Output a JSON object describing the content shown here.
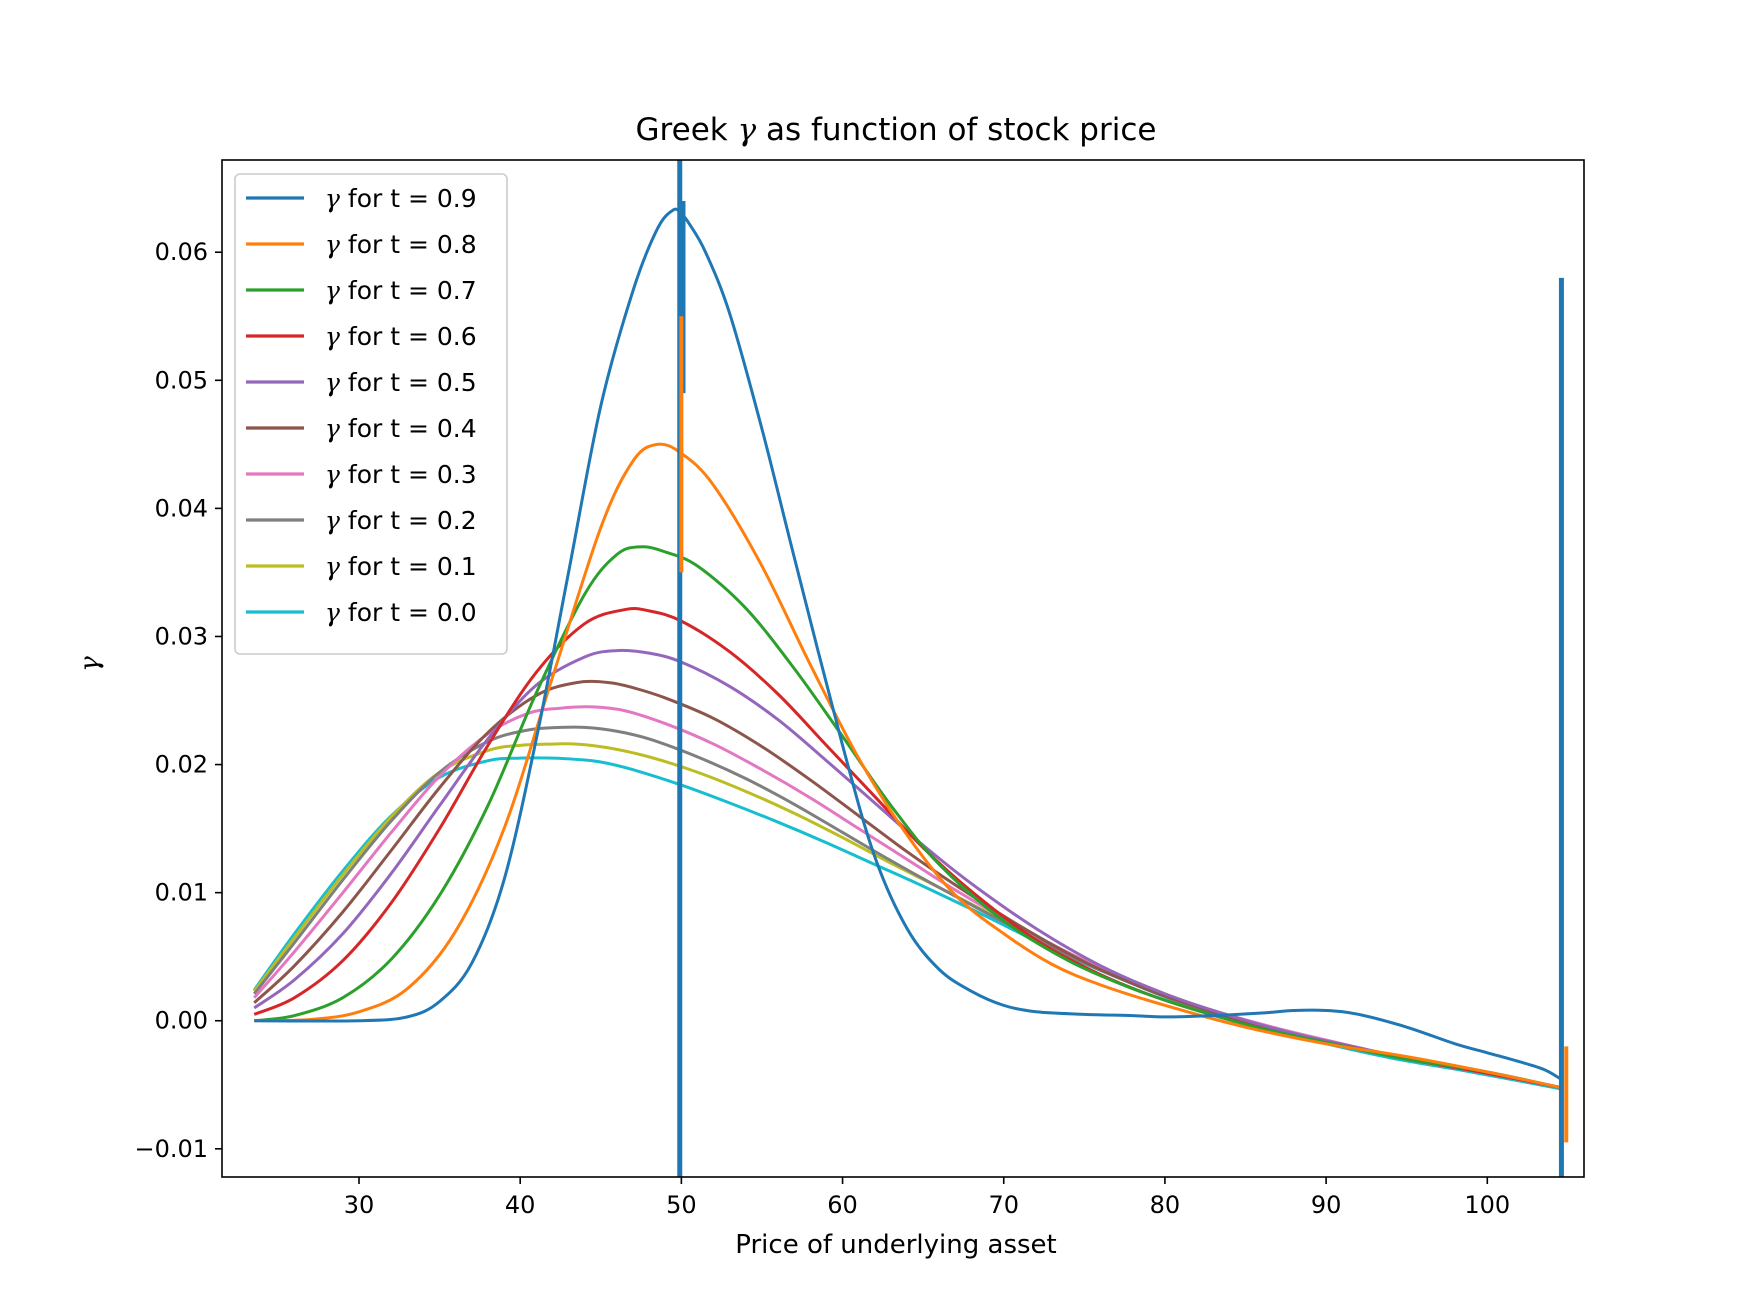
{
  "chart_data": {
    "type": "line",
    "title_prefix": "Greek ",
    "title_symbol": "γ",
    "title_suffix": " as function of stock price",
    "xlabel": "Price of underlying asset",
    "ylabel": "γ",
    "xlim": [
      21.5,
      106.0
    ],
    "ylim": [
      -0.0122,
      0.0672
    ],
    "grid": false,
    "legend_position": "upper-left",
    "x_ticks": [
      30,
      40,
      50,
      60,
      70,
      80,
      90,
      100
    ],
    "x_tick_labels": [
      "30",
      "40",
      "50",
      "60",
      "70",
      "80",
      "90",
      "100"
    ],
    "y_ticks": [
      -0.01,
      0.0,
      0.01,
      0.02,
      0.03,
      0.04,
      0.05,
      0.06
    ],
    "y_tick_labels": [
      "−0.01",
      "0.00",
      "0.01",
      "0.02",
      "0.03",
      "0.04",
      "0.05",
      "0.06"
    ],
    "x_range": [
      23.5,
      105.0
    ],
    "series": [
      {
        "name": "γ for t = 0.9",
        "symbol": "γ",
        "label": " for t = 0.9",
        "color": "#1f77b4",
        "x": [
          23.5,
          30,
          33,
          35,
          37,
          39,
          41,
          43,
          45,
          47,
          48.5,
          49.5,
          50,
          50.5,
          51.5,
          53,
          55,
          57,
          60,
          62,
          64,
          66,
          68,
          70,
          72,
          75,
          78,
          80,
          83,
          86,
          88,
          90,
          92,
          95,
          98,
          100,
          102,
          103.5,
          104.5
        ],
        "y": [
          0.0,
          0.0,
          0.0003,
          0.0015,
          0.0045,
          0.011,
          0.022,
          0.035,
          0.048,
          0.057,
          0.0618,
          0.0633,
          0.063,
          0.0622,
          0.06,
          0.0552,
          0.0462,
          0.0362,
          0.0215,
          0.0128,
          0.0072,
          0.004,
          0.0023,
          0.0012,
          0.0007,
          0.0005,
          0.0004,
          0.0003,
          0.0004,
          0.0006,
          0.0008,
          0.0008,
          0.0005,
          -0.0005,
          -0.0018,
          -0.0025,
          -0.0032,
          -0.0038,
          -0.0045
        ]
      },
      {
        "name": "γ for t = 0.8",
        "symbol": "γ",
        "label": " for t = 0.8",
        "color": "#ff7f0e",
        "x": [
          23.5,
          27,
          30,
          33,
          36,
          39,
          42,
          45,
          47,
          48.5,
          50,
          52,
          55,
          58,
          61,
          64,
          67,
          70,
          73,
          76,
          80,
          85,
          90,
          95,
          100,
          104.5
        ],
        "y": [
          0.0,
          0.0001,
          0.0007,
          0.0025,
          0.007,
          0.015,
          0.0268,
          0.0385,
          0.0437,
          0.045,
          0.0443,
          0.0418,
          0.0355,
          0.0278,
          0.0205,
          0.0145,
          0.0098,
          0.0068,
          0.0044,
          0.0028,
          0.0012,
          -0.0005,
          -0.0018,
          -0.0028,
          -0.004,
          -0.0052
        ]
      },
      {
        "name": "γ for t = 0.7",
        "symbol": "γ",
        "label": " for t = 0.7",
        "color": "#2ca02c",
        "x": [
          23.5,
          26,
          29,
          32,
          35,
          38,
          41,
          44,
          46,
          47.5,
          49,
          51,
          54,
          57,
          60,
          63,
          66,
          70,
          74,
          78,
          82,
          86,
          90,
          95,
          100,
          104.5
        ],
        "y": [
          0.0,
          0.0004,
          0.0018,
          0.0048,
          0.0098,
          0.0168,
          0.0256,
          0.0333,
          0.0364,
          0.037,
          0.0366,
          0.0355,
          0.0322,
          0.0275,
          0.0222,
          0.0168,
          0.0122,
          0.0078,
          0.0047,
          0.0025,
          0.0008,
          -0.0006,
          -0.0017,
          -0.003,
          -0.004,
          -0.0052
        ]
      },
      {
        "name": "γ for t = 0.6",
        "symbol": "γ",
        "label": " for t = 0.6",
        "color": "#d62728",
        "x": [
          23.5,
          26,
          29,
          32,
          35,
          38,
          41,
          44,
          46.5,
          48,
          50,
          53,
          56,
          59,
          62,
          65,
          68,
          72,
          76,
          80,
          84,
          88,
          92,
          96,
          100,
          104.5
        ],
        "y": [
          0.0005,
          0.0018,
          0.0047,
          0.0092,
          0.015,
          0.0215,
          0.0272,
          0.031,
          0.0321,
          0.032,
          0.0312,
          0.0288,
          0.0255,
          0.0215,
          0.0175,
          0.0135,
          0.0101,
          0.0063,
          0.0036,
          0.0016,
          0.0001,
          -0.0012,
          -0.0022,
          -0.0032,
          -0.0041,
          -0.0052
        ]
      },
      {
        "name": "γ for t = 0.5",
        "symbol": "γ",
        "label": " for t = 0.5",
        "color": "#9467bd",
        "x": [
          23.5,
          26,
          29,
          32,
          35,
          38,
          41,
          44,
          46,
          48,
          50,
          53,
          56,
          59,
          62,
          65,
          68,
          72,
          76,
          80,
          84,
          88,
          92,
          96,
          100,
          104.5
        ],
        "y": [
          0.001,
          0.0032,
          0.0068,
          0.0115,
          0.0168,
          0.022,
          0.0262,
          0.0284,
          0.0289,
          0.0287,
          0.028,
          0.0261,
          0.0235,
          0.0203,
          0.017,
          0.0137,
          0.0107,
          0.0072,
          0.0043,
          0.0021,
          0.0004,
          -0.001,
          -0.0021,
          -0.0032,
          -0.0041,
          -0.0052
        ]
      },
      {
        "name": "γ for t = 0.4",
        "symbol": "γ",
        "label": " for t = 0.4",
        "color": "#8c564b",
        "x": [
          23.5,
          26,
          29,
          32,
          35,
          38,
          41,
          43.5,
          45.5,
          47,
          49,
          52,
          55,
          58,
          61,
          64,
          67,
          71,
          75,
          79,
          83,
          87,
          91,
          95,
          100,
          104.5
        ],
        "y": [
          0.0014,
          0.0043,
          0.0085,
          0.0133,
          0.0182,
          0.0225,
          0.0254,
          0.0264,
          0.0264,
          0.026,
          0.0252,
          0.0236,
          0.0214,
          0.0188,
          0.016,
          0.0132,
          0.0106,
          0.0074,
          0.0046,
          0.0024,
          0.0007,
          -0.0007,
          -0.0019,
          -0.003,
          -0.0041,
          -0.0052
        ]
      },
      {
        "name": "γ for t = 0.3",
        "symbol": "γ",
        "label": " for t = 0.3",
        "color": "#e377c2",
        "x": [
          23.5,
          26,
          29,
          32,
          35,
          38,
          40.5,
          42.5,
          44.5,
          46.5,
          49,
          52,
          55,
          58,
          61,
          64,
          67,
          71,
          75,
          79,
          83,
          87,
          91,
          95,
          100,
          104.5
        ],
        "y": [
          0.0018,
          0.0054,
          0.01,
          0.0147,
          0.0191,
          0.0224,
          0.024,
          0.0244,
          0.0245,
          0.0242,
          0.0232,
          0.0216,
          0.0196,
          0.0174,
          0.015,
          0.0126,
          0.0102,
          0.0073,
          0.0047,
          0.0025,
          0.0008,
          -0.0006,
          -0.0018,
          -0.003,
          -0.0041,
          -0.0052
        ]
      },
      {
        "name": "γ for t = 0.2",
        "symbol": "γ",
        "label": " for t = 0.2",
        "color": "#7f7f7f",
        "x": [
          23.5,
          26,
          29,
          32,
          35,
          38,
          40.5,
          42.5,
          44,
          46,
          48,
          51,
          54,
          57,
          60,
          63,
          66,
          70,
          74,
          78,
          82,
          86,
          90,
          95,
          100,
          104.5
        ],
        "y": [
          0.0021,
          0.0061,
          0.011,
          0.0156,
          0.0194,
          0.0218,
          0.0227,
          0.0229,
          0.0229,
          0.0226,
          0.022,
          0.0206,
          0.0189,
          0.0169,
          0.0147,
          0.0125,
          0.0104,
          0.0077,
          0.0051,
          0.0029,
          0.001,
          -0.0004,
          -0.0017,
          -0.003,
          -0.0041,
          -0.0052
        ]
      },
      {
        "name": "γ for t = 0.1",
        "symbol": "γ",
        "label": " for t = 0.1",
        "color": "#bcbd22",
        "x": [
          23.5,
          26,
          29,
          32,
          35,
          38,
          40,
          42,
          43.5,
          45.5,
          48,
          51,
          54,
          57,
          60,
          63,
          66,
          70,
          74,
          78,
          82,
          86,
          90,
          95,
          100,
          104.5
        ],
        "y": [
          0.0023,
          0.0065,
          0.0114,
          0.0159,
          0.0194,
          0.0211,
          0.0215,
          0.0216,
          0.0216,
          0.0213,
          0.0206,
          0.0194,
          0.0179,
          0.0162,
          0.0143,
          0.0123,
          0.0104,
          0.0078,
          0.0053,
          0.0031,
          0.0012,
          -0.0003,
          -0.0016,
          -0.003,
          -0.0041,
          -0.0052
        ]
      },
      {
        "name": "γ for t = 0.0",
        "symbol": "γ",
        "label": " for t = 0.0",
        "color": "#17becf",
        "x": [
          23.5,
          26,
          29,
          32,
          35,
          38,
          40,
          42,
          43.5,
          45,
          47,
          50,
          53,
          56,
          59,
          62,
          65,
          69,
          73,
          77,
          81,
          85,
          89,
          94,
          99,
          104.5
        ],
        "y": [
          0.0024,
          0.0068,
          0.0117,
          0.016,
          0.019,
          0.0203,
          0.0205,
          0.0205,
          0.0204,
          0.0202,
          0.0196,
          0.0184,
          0.017,
          0.0155,
          0.0139,
          0.0122,
          0.0105,
          0.0081,
          0.0056,
          0.0034,
          0.0014,
          -0.0002,
          -0.0015,
          -0.0029,
          -0.004,
          -0.0053
        ]
      }
    ],
    "spikes": [
      {
        "series": "γ for t = 0.9",
        "color": "#1f77b4",
        "x": 49.9,
        "y": [
          -0.0122,
          0.0672
        ]
      },
      {
        "series": "γ for t = 0.9",
        "color": "#1f77b4",
        "x": 50.1,
        "y": [
          0.049,
          0.064
        ]
      },
      {
        "series": "γ for t = 0.9",
        "color": "#1f77b4",
        "x": 104.6,
        "y": [
          -0.0122,
          0.058
        ]
      },
      {
        "series": "γ for t = 0.8",
        "color": "#ff7f0e",
        "x": 50.0,
        "y": [
          0.035,
          0.055
        ]
      },
      {
        "series": "γ for t = 0.8",
        "color": "#ff7f0e",
        "x": 104.9,
        "y": [
          -0.0095,
          -0.002
        ]
      }
    ]
  }
}
